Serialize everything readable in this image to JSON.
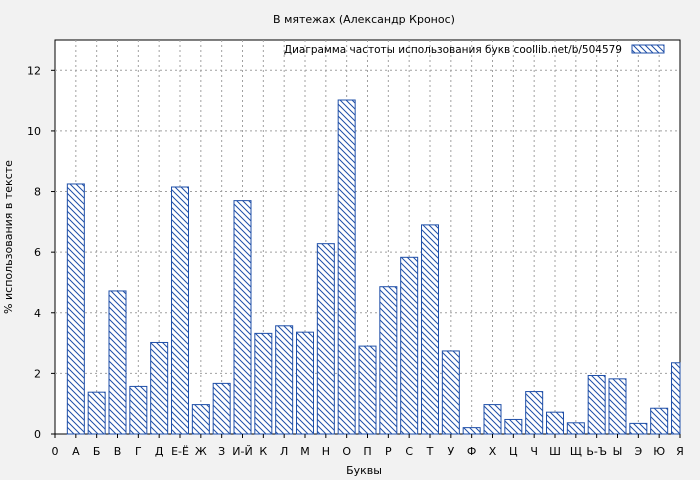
{
  "chart_data": {
    "type": "bar",
    "title": "В мятежах (Александр Кронос)",
    "xlabel": "Буквы",
    "ylabel": "% использования в тексте",
    "legend": "Диаграмма частоты использования букв  coollib.net/b/504579",
    "legend_position": "top-right",
    "grid": true,
    "ylim": [
      0,
      13
    ],
    "yticks": [
      0,
      2,
      4,
      6,
      8,
      10,
      12
    ],
    "categories": [
      "0",
      "А",
      "Б",
      "В",
      "Г",
      "Д",
      "Е-Ё",
      "Ж",
      "З",
      "И-Й",
      "К",
      "Л",
      "М",
      "Н",
      "О",
      "П",
      "Р",
      "С",
      "Т",
      "У",
      "Ф",
      "Х",
      "Ц",
      "Ч",
      "Ш",
      "Щ",
      "Ь-Ъ",
      "Ы",
      "Э",
      "Ю",
      "Я"
    ],
    "values": [
      0,
      8.25,
      1.38,
      4.72,
      1.57,
      3.02,
      8.15,
      0.97,
      1.67,
      7.7,
      3.32,
      3.57,
      3.36,
      6.28,
      11.02,
      2.9,
      4.86,
      5.83,
      6.9,
      2.74,
      0.21,
      0.97,
      0.48,
      1.4,
      0.72,
      0.37,
      1.93,
      1.82,
      0.35,
      0.85,
      2.35
    ]
  }
}
